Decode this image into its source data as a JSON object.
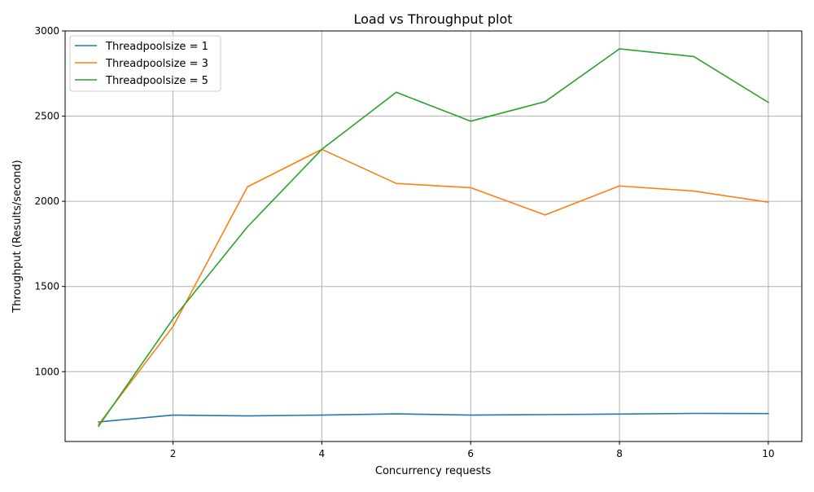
{
  "chart_data": {
    "type": "line",
    "title": "Load vs Throughput plot",
    "xlabel": "Concurrency requests",
    "ylabel": "Throughput (Results/second)",
    "x": [
      1,
      2,
      3,
      4,
      5,
      6,
      7,
      8,
      9,
      10
    ],
    "xlim": [
      0.55,
      10.45
    ],
    "ylim": [
      590,
      3000
    ],
    "xticks": [
      2,
      4,
      6,
      8,
      10
    ],
    "xtick_labels": [
      "2",
      "4",
      "6",
      "8",
      "10"
    ],
    "yticks": [
      1000,
      1500,
      2000,
      2500,
      3000
    ],
    "ytick_labels": [
      "1000",
      "1500",
      "2000",
      "2500",
      "3000"
    ],
    "grid": true,
    "legend_position": "top-left",
    "series": [
      {
        "name": "Threadpoolsize = 1",
        "color": "#1f77b4",
        "values": [
          705,
          745,
          740,
          745,
          752,
          745,
          748,
          751,
          755,
          754
        ]
      },
      {
        "name": "Threadpoolsize = 3",
        "color": "#ff7f0e",
        "values": [
          690,
          1265,
          2085,
          2305,
          2105,
          2080,
          1920,
          2090,
          2060,
          1995
        ]
      },
      {
        "name": "Threadpoolsize = 5",
        "color": "#2ca02c",
        "values": [
          680,
          1310,
          1850,
          2305,
          2640,
          2470,
          2585,
          2895,
          2850,
          2580
        ]
      }
    ]
  }
}
